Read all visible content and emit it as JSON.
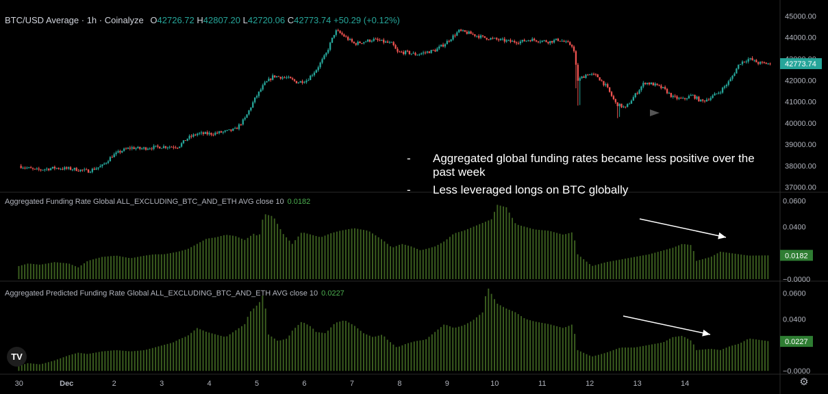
{
  "header": {
    "symbol": "BTC/USD Average · 1h · Coinalyze",
    "open_label": "O",
    "open": "42726.72",
    "high_label": "H",
    "high": "42807.20",
    "low_label": "L",
    "low": "42720.06",
    "close_label": "C",
    "close": "42773.74",
    "change": "+50.29 (+0.12%)"
  },
  "annotation": {
    "bullet_1": "Aggregated global funding rates became less positive over the past week",
    "bullet_2": "Less leveraged longs on BTC globally",
    "dash": "-"
  },
  "colors": {
    "background": "#000000",
    "up": "#26a69a",
    "down": "#ef5350",
    "funding_bar": "#3b5e1f",
    "funding_label": "#4caf50",
    "axis_text": "#b2b5be",
    "grid_line": "#1c1c1c",
    "price_badge": "#26a69a"
  },
  "icons": {
    "logo": "tradingview-logo-icon",
    "settings": "gear-icon"
  },
  "chart_data": [
    {
      "type": "candlestick",
      "name": "BTC/USD Average 1h",
      "ylim": [
        36800,
        45300
      ],
      "y_ticks": [
        "45000.00",
        "44000.00",
        "43000.00",
        "42000.00",
        "41000.00",
        "40000.00",
        "39000.00",
        "38000.00",
        "37000.00"
      ],
      "last_price": "42773.74",
      "x_start_index": -0.75,
      "hours_per_day": 24,
      "close_path": [
        [
          -0.75,
          38000
        ],
        [
          -0.4,
          37800
        ],
        [
          0.0,
          37900
        ],
        [
          0.4,
          37850
        ],
        [
          0.7,
          37750
        ],
        [
          1.0,
          38000
        ],
        [
          1.2,
          38450
        ],
        [
          1.4,
          38700
        ],
        [
          1.6,
          38850
        ],
        [
          1.8,
          38800
        ],
        [
          2.0,
          38850
        ],
        [
          2.3,
          38900
        ],
        [
          2.6,
          38900
        ],
        [
          2.8,
          39300
        ],
        [
          3.0,
          39500
        ],
        [
          3.3,
          39500
        ],
        [
          3.6,
          39600
        ],
        [
          3.8,
          39700
        ],
        [
          4.0,
          40200
        ],
        [
          4.2,
          41100
        ],
        [
          4.4,
          41800
        ],
        [
          4.6,
          42200
        ],
        [
          4.9,
          42100
        ],
        [
          5.1,
          41900
        ],
        [
          5.3,
          42000
        ],
        [
          5.5,
          42500
        ],
        [
          5.7,
          43200
        ],
        [
          5.9,
          44300
        ],
        [
          6.0,
          44200
        ],
        [
          6.3,
          43700
        ],
        [
          6.5,
          43800
        ],
        [
          6.7,
          43900
        ],
        [
          6.9,
          43800
        ],
        [
          7.1,
          43700
        ],
        [
          7.2,
          43300
        ],
        [
          7.4,
          43300
        ],
        [
          7.6,
          43200
        ],
        [
          7.8,
          43300
        ],
        [
          8.0,
          43400
        ],
        [
          8.2,
          43700
        ],
        [
          8.5,
          44300
        ],
        [
          8.7,
          44200
        ],
        [
          9.0,
          44000
        ],
        [
          9.3,
          43900
        ],
        [
          9.6,
          43800
        ],
        [
          9.8,
          43800
        ],
        [
          10.0,
          43900
        ],
        [
          10.4,
          43800
        ],
        [
          10.6,
          43900
        ],
        [
          10.8,
          43700
        ],
        [
          10.9,
          43600
        ],
        [
          11.0,
          42000
        ],
        [
          11.2,
          42300
        ],
        [
          11.4,
          42200
        ],
        [
          11.6,
          41700
        ],
        [
          11.8,
          40900
        ],
        [
          12.0,
          40700
        ],
        [
          12.2,
          41300
        ],
        [
          12.4,
          41900
        ],
        [
          12.6,
          41800
        ],
        [
          12.8,
          41600
        ],
        [
          13.0,
          41200
        ],
        [
          13.2,
          41100
        ],
        [
          13.4,
          41300
        ],
        [
          13.6,
          41000
        ],
        [
          13.8,
          41200
        ],
        [
          14.0,
          41500
        ],
        [
          14.2,
          42000
        ],
        [
          14.4,
          42800
        ],
        [
          14.6,
          43000
        ],
        [
          14.8,
          42800
        ],
        [
          15.05,
          42774
        ]
      ]
    },
    {
      "type": "bar",
      "name": "Aggregated Funding Rate Global ALL_EXCLUDING_BTC_AND_ETH AVG close 10",
      "last_value": "0.0182",
      "ylim": [
        -0.0005,
        0.066
      ],
      "y_ticks": [
        "0.0600",
        "0.0400",
        "−0.0000"
      ],
      "series_path": [
        [
          -0.75,
          0.01
        ],
        [
          -0.55,
          0.012
        ],
        [
          -0.3,
          0.011
        ],
        [
          0.0,
          0.013
        ],
        [
          0.3,
          0.012
        ],
        [
          0.5,
          0.009
        ],
        [
          0.7,
          0.014
        ],
        [
          1.0,
          0.017
        ],
        [
          1.3,
          0.018
        ],
        [
          1.6,
          0.016
        ],
        [
          1.9,
          0.018
        ],
        [
          2.1,
          0.019
        ],
        [
          2.3,
          0.019
        ],
        [
          2.6,
          0.021
        ],
        [
          2.8,
          0.023
        ],
        [
          3.0,
          0.027
        ],
        [
          3.2,
          0.031
        ],
        [
          3.4,
          0.032
        ],
        [
          3.6,
          0.034
        ],
        [
          3.8,
          0.033
        ],
        [
          4.0,
          0.03
        ],
        [
          4.2,
          0.035
        ],
        [
          4.3,
          0.032
        ],
        [
          4.4,
          0.05
        ],
        [
          4.6,
          0.048
        ],
        [
          4.8,
          0.035
        ],
        [
          5.0,
          0.027
        ],
        [
          5.2,
          0.036
        ],
        [
          5.4,
          0.034
        ],
        [
          5.6,
          0.032
        ],
        [
          5.8,
          0.035
        ],
        [
          6.0,
          0.037
        ],
        [
          6.3,
          0.039
        ],
        [
          6.6,
          0.037
        ],
        [
          6.9,
          0.03
        ],
        [
          7.1,
          0.024
        ],
        [
          7.3,
          0.027
        ],
        [
          7.5,
          0.025
        ],
        [
          7.7,
          0.022
        ],
        [
          7.9,
          0.024
        ],
        [
          8.0,
          0.025
        ],
        [
          8.2,
          0.029
        ],
        [
          8.4,
          0.035
        ],
        [
          8.6,
          0.037
        ],
        [
          8.8,
          0.04
        ],
        [
          9.0,
          0.043
        ],
        [
          9.2,
          0.046
        ],
        [
          9.3,
          0.057
        ],
        [
          9.5,
          0.055
        ],
        [
          9.7,
          0.042
        ],
        [
          9.9,
          0.04
        ],
        [
          10.1,
          0.038
        ],
        [
          10.4,
          0.037
        ],
        [
          10.7,
          0.034
        ],
        [
          10.9,
          0.036
        ],
        [
          11.0,
          0.019
        ],
        [
          11.3,
          0.01
        ],
        [
          11.6,
          0.013
        ],
        [
          11.9,
          0.015
        ],
        [
          12.2,
          0.017
        ],
        [
          12.5,
          0.019
        ],
        [
          12.8,
          0.022
        ],
        [
          13.0,
          0.024
        ],
        [
          13.2,
          0.027
        ],
        [
          13.4,
          0.026
        ],
        [
          13.5,
          0.014
        ],
        [
          13.8,
          0.017
        ],
        [
          14.0,
          0.021
        ],
        [
          14.2,
          0.02
        ],
        [
          14.4,
          0.019
        ],
        [
          14.6,
          0.018
        ],
        [
          15.05,
          0.0182
        ]
      ]
    },
    {
      "type": "bar",
      "name": "Aggregated Predicted Funding Rate Global ALL_EXCLUDING_BTC_AND_ETH AVG close 10",
      "last_value": "0.0227",
      "ylim": [
        -0.002,
        0.067
      ],
      "y_ticks": [
        "0.0600",
        "0.0400",
        "−0.0000"
      ],
      "series_path": [
        [
          -0.75,
          0.004
        ],
        [
          -0.55,
          0.006
        ],
        [
          -0.3,
          0.005
        ],
        [
          0.0,
          0.008
        ],
        [
          0.3,
          0.012
        ],
        [
          0.5,
          0.014
        ],
        [
          0.7,
          0.013
        ],
        [
          1.0,
          0.015
        ],
        [
          1.3,
          0.016
        ],
        [
          1.6,
          0.015
        ],
        [
          1.9,
          0.016
        ],
        [
          2.1,
          0.018
        ],
        [
          2.3,
          0.02
        ],
        [
          2.5,
          0.022
        ],
        [
          2.6,
          0.024
        ],
        [
          2.8,
          0.027
        ],
        [
          3.0,
          0.033
        ],
        [
          3.2,
          0.03
        ],
        [
          3.4,
          0.028
        ],
        [
          3.6,
          0.026
        ],
        [
          3.8,
          0.031
        ],
        [
          4.0,
          0.036
        ],
        [
          4.1,
          0.045
        ],
        [
          4.3,
          0.052
        ],
        [
          4.4,
          0.06
        ],
        [
          4.5,
          0.028
        ],
        [
          4.7,
          0.023
        ],
        [
          4.9,
          0.025
        ],
        [
          5.0,
          0.031
        ],
        [
          5.2,
          0.038
        ],
        [
          5.4,
          0.034
        ],
        [
          5.5,
          0.03
        ],
        [
          5.7,
          0.029
        ],
        [
          5.9,
          0.037
        ],
        [
          6.1,
          0.039
        ],
        [
          6.3,
          0.035
        ],
        [
          6.5,
          0.029
        ],
        [
          6.7,
          0.026
        ],
        [
          6.9,
          0.028
        ],
        [
          7.0,
          0.024
        ],
        [
          7.2,
          0.018
        ],
        [
          7.4,
          0.021
        ],
        [
          7.6,
          0.023
        ],
        [
          7.8,
          0.024
        ],
        [
          8.0,
          0.03
        ],
        [
          8.2,
          0.036
        ],
        [
          8.4,
          0.033
        ],
        [
          8.6,
          0.035
        ],
        [
          8.8,
          0.039
        ],
        [
          9.0,
          0.045
        ],
        [
          9.1,
          0.065
        ],
        [
          9.3,
          0.052
        ],
        [
          9.5,
          0.048
        ],
        [
          9.7,
          0.045
        ],
        [
          9.9,
          0.04
        ],
        [
          10.1,
          0.038
        ],
        [
          10.4,
          0.036
        ],
        [
          10.7,
          0.033
        ],
        [
          10.9,
          0.036
        ],
        [
          11.0,
          0.016
        ],
        [
          11.3,
          0.011
        ],
        [
          11.6,
          0.014
        ],
        [
          11.9,
          0.018
        ],
        [
          12.2,
          0.018
        ],
        [
          12.5,
          0.02
        ],
        [
          12.8,
          0.022
        ],
        [
          13.0,
          0.026
        ],
        [
          13.2,
          0.027
        ],
        [
          13.4,
          0.023
        ],
        [
          13.5,
          0.016
        ],
        [
          13.8,
          0.017
        ],
        [
          14.0,
          0.016
        ],
        [
          14.2,
          0.019
        ],
        [
          14.4,
          0.021
        ],
        [
          14.6,
          0.025
        ],
        [
          15.05,
          0.0227
        ]
      ]
    }
  ],
  "x_axis": {
    "ticks": [
      {
        "day": -0.75,
        "label": "30"
      },
      {
        "day": 0.25,
        "label": "Dec"
      },
      {
        "day": 1.25,
        "label": "2"
      },
      {
        "day": 2.25,
        "label": "3"
      },
      {
        "day": 3.25,
        "label": "4"
      },
      {
        "day": 4.25,
        "label": "5"
      },
      {
        "day": 5.25,
        "label": "6"
      },
      {
        "day": 6.25,
        "label": "7"
      },
      {
        "day": 7.25,
        "label": "8"
      },
      {
        "day": 8.25,
        "label": "9"
      },
      {
        "day": 9.25,
        "label": "10"
      },
      {
        "day": 10.25,
        "label": "11"
      },
      {
        "day": 11.25,
        "label": "12"
      },
      {
        "day": 12.25,
        "label": "13"
      },
      {
        "day": 13.25,
        "label": "14"
      }
    ],
    "range": [
      -1.15,
      15.25
    ]
  }
}
